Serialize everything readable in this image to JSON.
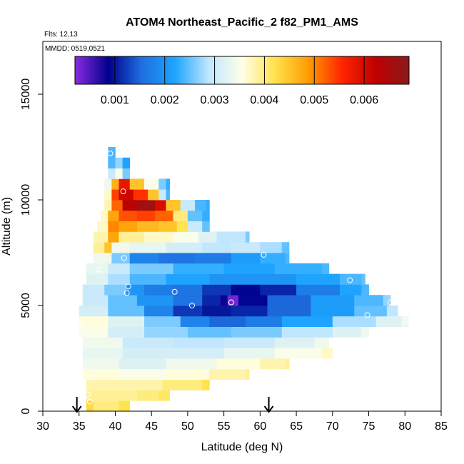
{
  "chart_data": {
    "type": "heatmap",
    "title": "ATOM4 Northeast_Pacific_2 f82_PM1_AMS",
    "flights_note": "Flts: 12,13",
    "date_note": "MMDD: 0519,0521",
    "xlabel": "Latitude (deg N)",
    "ylabel": "Altitude (m)",
    "xlim": [
      30,
      85
    ],
    "ylim": [
      0,
      17500
    ],
    "xticks": [
      30,
      35,
      40,
      45,
      50,
      55,
      60,
      65,
      70,
      75,
      80,
      85
    ],
    "yticks": [
      0,
      5000,
      10000,
      15000
    ],
    "colorbar": {
      "range": [
        0.0002,
        0.0069
      ],
      "ticks": [
        0.001,
        0.002,
        0.003,
        0.004,
        0.005,
        0.006
      ],
      "tick_labels": [
        "0.001",
        "0.002",
        "0.003",
        "0.004",
        "0.005",
        "0.006"
      ],
      "colors": [
        "#8a2be2",
        "#00008b",
        "#1e6fe0",
        "#1ea5ff",
        "#bfe6ff",
        "#ffffe8",
        "#ffe24a",
        "#ff9a00",
        "#ff2400",
        "#c00000",
        "#8b1a1a"
      ]
    },
    "arrows_latitude": [
      34.7,
      61.2
    ],
    "layers": [
      {
        "alt": 250,
        "lat_min": 36.0,
        "lat_max": 42.0,
        "cells": [
          [
            36.0,
            0.0043
          ],
          [
            37.0,
            0.004
          ],
          [
            38.5,
            0.004
          ],
          [
            40.5,
            0.0042
          ]
        ]
      },
      {
        "alt": 750,
        "lat_min": 36.0,
        "lat_max": 47.5,
        "cells": [
          [
            36.0,
            0.0039
          ],
          [
            38.5,
            0.0039
          ],
          [
            43.0,
            0.004
          ],
          [
            46.0,
            0.0041
          ]
        ]
      },
      {
        "alt": 1250,
        "lat_min": 36.0,
        "lat_max": 53.0,
        "cells": [
          [
            36.0,
            0.0038
          ],
          [
            40.5,
            0.0038
          ],
          [
            46.5,
            0.004
          ],
          [
            52.0,
            0.0042
          ]
        ]
      },
      {
        "alt": 1750,
        "lat_min": 35.5,
        "lat_max": 58.5,
        "cells": [
          [
            35.5,
            0.0036
          ],
          [
            40.5,
            0.0035
          ],
          [
            47.0,
            0.0036
          ],
          [
            53.0,
            0.0038
          ],
          [
            58.0,
            0.0039
          ]
        ]
      },
      {
        "alt": 2250,
        "lat_min": 35.5,
        "lat_max": 64.0,
        "cells": [
          [
            35.5,
            0.0034
          ],
          [
            40.5,
            0.0032
          ],
          [
            47.0,
            0.0034
          ],
          [
            54.0,
            0.0036
          ],
          [
            60.0,
            0.0038
          ],
          [
            63.5,
            0.0039
          ]
        ]
      },
      {
        "alt": 2750,
        "lat_min": 35.5,
        "lat_max": 70.0,
        "cells": [
          [
            35.5,
            0.0033
          ],
          [
            41.0,
            0.0031
          ],
          [
            48.0,
            0.0031
          ],
          [
            55.0,
            0.0033
          ],
          [
            62.0,
            0.0035
          ],
          [
            68.5,
            0.0037
          ]
        ]
      },
      {
        "alt": 3250,
        "lat_min": 35.5,
        "lat_max": 69.5,
        "cells": [
          [
            35.5,
            0.0034
          ],
          [
            41.0,
            0.003
          ],
          [
            48.0,
            0.0029
          ],
          [
            55.0,
            0.003
          ],
          [
            62.0,
            0.0032
          ],
          [
            67.5,
            0.0034
          ]
        ]
      },
      {
        "alt": 3750,
        "lat_min": 35.0,
        "lat_max": 75.0,
        "cells": [
          [
            35.0,
            0.0035
          ],
          [
            39.0,
            0.0031
          ],
          [
            44.0,
            0.0027
          ],
          [
            50.0,
            0.0025
          ],
          [
            56.0,
            0.0026
          ],
          [
            63.0,
            0.0029
          ],
          [
            70.0,
            0.0032
          ],
          [
            74.0,
            0.0034
          ]
        ]
      },
      {
        "alt": 4250,
        "lat_min": 35.0,
        "lat_max": 80.5,
        "cells": [
          [
            35.0,
            0.0036
          ],
          [
            39.0,
            0.0032
          ],
          [
            44.0,
            0.0026
          ],
          [
            49.0,
            0.0018
          ],
          [
            53.0,
            0.0015
          ],
          [
            58.0,
            0.0017
          ],
          [
            63.0,
            0.0022
          ],
          [
            70.0,
            0.0028
          ],
          [
            76.0,
            0.0032
          ],
          [
            79.5,
            0.0034
          ]
        ]
      },
      {
        "alt": 4750,
        "lat_min": 35.0,
        "lat_max": 79.0,
        "cells": [
          [
            35.0,
            0.0031
          ],
          [
            39.0,
            0.0025
          ],
          [
            44.0,
            0.0018
          ],
          [
            48.0,
            0.0012
          ],
          [
            52.0,
            0.001
          ],
          [
            56.0,
            0.0011
          ],
          [
            61.0,
            0.0015
          ],
          [
            67.0,
            0.0021
          ],
          [
            73.0,
            0.0025
          ],
          [
            77.5,
            0.0029
          ]
        ]
      },
      {
        "alt": 5250,
        "lat_min": 35.5,
        "lat_max": 78.0,
        "cells": [
          [
            35.5,
            0.003
          ],
          [
            39.0,
            0.0025
          ],
          [
            43.0,
            0.002
          ],
          [
            48.0,
            0.0016
          ],
          [
            52.0,
            0.0011
          ],
          [
            54.5,
            0.0008
          ],
          [
            55.5,
            0.0003
          ],
          [
            57.0,
            0.0009
          ],
          [
            61.0,
            0.0015
          ],
          [
            67.0,
            0.0021
          ],
          [
            73.0,
            0.0024
          ],
          [
            77.0,
            0.0027
          ]
        ]
      },
      {
        "alt": 5750,
        "lat_min": 35.5,
        "lat_max": 75.0,
        "cells": [
          [
            35.5,
            0.003
          ],
          [
            38.5,
            0.0026
          ],
          [
            41.5,
            0.002
          ],
          [
            44.0,
            0.0017
          ],
          [
            48.0,
            0.0016
          ],
          [
            52.0,
            0.0012
          ],
          [
            56.0,
            0.0009
          ],
          [
            60.0,
            0.0011
          ],
          [
            65.0,
            0.0017
          ],
          [
            71.0,
            0.0022
          ],
          [
            74.0,
            0.0024
          ]
        ]
      },
      {
        "alt": 6250,
        "lat_min": 36.0,
        "lat_max": 74.5,
        "cells": [
          [
            36.0,
            0.0032
          ],
          [
            39.0,
            0.0028
          ],
          [
            42.0,
            0.0024
          ],
          [
            47.0,
            0.0022
          ],
          [
            53.0,
            0.002
          ],
          [
            59.0,
            0.002
          ],
          [
            65.0,
            0.0022
          ],
          [
            71.0,
            0.0024
          ],
          [
            74.0,
            0.0025
          ]
        ]
      },
      {
        "alt": 6750,
        "lat_min": 36.0,
        "lat_max": 69.5,
        "cells": [
          [
            36.0,
            0.0033
          ],
          [
            39.0,
            0.003
          ],
          [
            42.0,
            0.0026
          ],
          [
            48.0,
            0.0023
          ],
          [
            55.0,
            0.0022
          ],
          [
            62.0,
            0.0023
          ],
          [
            68.5,
            0.0024
          ]
        ]
      },
      {
        "alt": 7250,
        "lat_min": 37.0,
        "lat_max": 64.0,
        "cells": [
          [
            37.0,
            0.0034
          ],
          [
            39.5,
            0.0026
          ],
          [
            42.0,
            0.0018
          ],
          [
            46.0,
            0.0016
          ],
          [
            51.0,
            0.0017
          ],
          [
            56.0,
            0.0021
          ],
          [
            60.0,
            0.0023
          ],
          [
            63.5,
            0.0024
          ]
        ]
      },
      {
        "alt": 7750,
        "lat_min": 37.0,
        "lat_max": 64.0,
        "cells": [
          [
            37.0,
            0.0039
          ],
          [
            38.5,
            0.0045
          ],
          [
            39.5,
            0.0034
          ],
          [
            42.0,
            0.0033
          ],
          [
            47.0,
            0.0031
          ],
          [
            52.0,
            0.0029
          ],
          [
            56.0,
            0.003
          ],
          [
            60.0,
            0.0028
          ],
          [
            63.0,
            0.0025
          ]
        ]
      },
      {
        "alt": 8250,
        "lat_min": 37.0,
        "lat_max": 58.5,
        "cells": [
          [
            37.0,
            0.0038
          ],
          [
            39.0,
            0.0048
          ],
          [
            40.5,
            0.0039
          ],
          [
            44.0,
            0.0037
          ],
          [
            48.0,
            0.0035
          ],
          [
            51.5,
            0.0032
          ],
          [
            54.0,
            0.0029
          ],
          [
            58.0,
            0.0026
          ]
        ]
      },
      {
        "alt": 8750,
        "lat_min": 37.5,
        "lat_max": 53.0,
        "cells": [
          [
            37.5,
            0.0037
          ],
          [
            39.0,
            0.005
          ],
          [
            40.5,
            0.0048
          ],
          [
            43.0,
            0.0046
          ],
          [
            46.0,
            0.0045
          ],
          [
            48.5,
            0.0042
          ],
          [
            50.0,
            0.003
          ],
          [
            52.0,
            0.0025
          ]
        ]
      },
      {
        "alt": 9250,
        "lat_min": 38.0,
        "lat_max": 53.0,
        "cells": [
          [
            38.0,
            0.0037
          ],
          [
            39.0,
            0.0048
          ],
          [
            40.5,
            0.0053
          ],
          [
            43.0,
            0.0054
          ],
          [
            45.5,
            0.0052
          ],
          [
            48.0,
            0.004
          ],
          [
            50.0,
            0.0025
          ],
          [
            52.0,
            0.0023
          ]
        ]
      },
      {
        "alt": 9750,
        "lat_min": 38.5,
        "lat_max": 53.0,
        "cells": [
          [
            38.5,
            0.0038
          ],
          [
            39.5,
            0.0052
          ],
          [
            41.0,
            0.0063
          ],
          [
            43.0,
            0.0066
          ],
          [
            45.5,
            0.006
          ],
          [
            47.0,
            0.0045
          ],
          [
            49.0,
            0.003
          ],
          [
            51.0,
            0.0024
          ],
          [
            52.5,
            0.0023
          ]
        ]
      },
      {
        "alt": 10250,
        "lat_min": 38.5,
        "lat_max": 47.5,
        "cells": [
          [
            38.5,
            0.0037
          ],
          [
            39.5,
            0.0054
          ],
          [
            40.5,
            0.0061
          ],
          [
            42.5,
            0.0055
          ],
          [
            44.5,
            0.0045
          ],
          [
            46.0,
            0.003
          ],
          [
            47.0,
            0.0024
          ]
        ]
      },
      {
        "alt": 10750,
        "lat_min": 38.5,
        "lat_max": 47.5,
        "cells": [
          [
            38.5,
            0.0034
          ],
          [
            39.5,
            0.0047
          ],
          [
            40.5,
            0.0058
          ],
          [
            42.0,
            0.0045
          ],
          [
            44.0,
            0.0035
          ],
          [
            46.0,
            0.0026
          ],
          [
            47.0,
            0.0023
          ]
        ]
      },
      {
        "alt": 11250,
        "lat_min": 39.0,
        "lat_max": 42.0,
        "cells": [
          [
            39.0,
            0.003
          ],
          [
            40.0,
            0.0035
          ],
          [
            41.0,
            0.0026
          ]
        ]
      },
      {
        "alt": 11750,
        "lat_min": 39.0,
        "lat_max": 42.0,
        "cells": [
          [
            39.0,
            0.0024
          ],
          [
            40.0,
            0.0027
          ],
          [
            41.0,
            0.0022
          ]
        ]
      },
      {
        "alt": 12250,
        "lat_min": 39.0,
        "lat_max": 40.0,
        "cells": [
          [
            39.0,
            0.0024
          ]
        ]
      }
    ],
    "sample_points": [
      [
        36.5,
        450
      ],
      [
        36.2,
        800
      ],
      [
        36.8,
        1600
      ],
      [
        35.3,
        4100
      ],
      [
        37.7,
        6700
      ],
      [
        41.2,
        7250
      ],
      [
        41.1,
        10400
      ],
      [
        39.3,
        12200
      ],
      [
        41.6,
        5600
      ],
      [
        41.8,
        5900
      ],
      [
        48.2,
        5650
      ],
      [
        50.6,
        5000
      ],
      [
        56.0,
        5150
      ],
      [
        60.5,
        7400
      ],
      [
        72.4,
        6200
      ],
      [
        74.8,
        4550
      ],
      [
        78.0,
        5150
      ],
      [
        80.3,
        4300
      ]
    ]
  }
}
